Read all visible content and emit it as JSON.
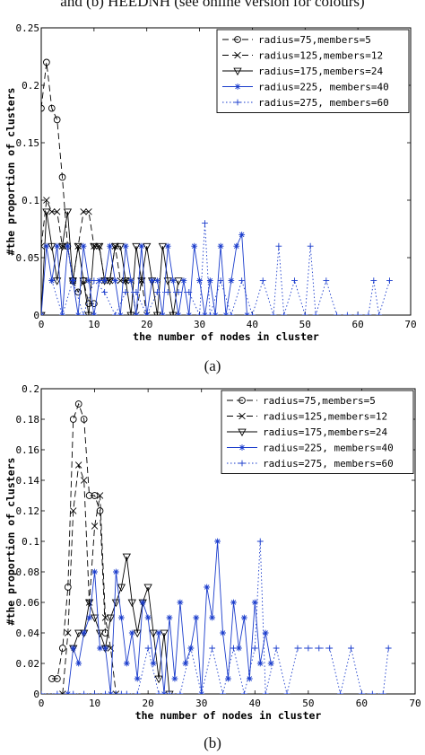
{
  "header_caption": "and (b) HEEDNH (see online version for colours)",
  "chart_data": [
    {
      "panel": "a",
      "caption": "(a)",
      "type": "line",
      "xlabel": "the number of nodes in cluster",
      "ylabel": "#the proportion of clusters",
      "xlim": [
        0,
        70
      ],
      "ylim": [
        0,
        0.25
      ],
      "xticks": [
        0,
        10,
        20,
        30,
        40,
        50,
        60,
        70
      ],
      "yticks": [
        0,
        0.05,
        0.1,
        0.15,
        0.2,
        0.25
      ],
      "ytick_labels": [
        "0",
        "0.05",
        "0.1",
        "0.15",
        "0.2",
        "0.25"
      ],
      "legend_position": "top-right",
      "grid": false,
      "series": [
        {
          "name": "radius=75,members=5",
          "color": "#000000",
          "dash": "7,4",
          "marker": "circle",
          "x": [
            0,
            1,
            2,
            3,
            4,
            5,
            6,
            7,
            8,
            9,
            10
          ],
          "y": [
            0.18,
            0.22,
            0.18,
            0.17,
            0.12,
            0.06,
            0.03,
            0.02,
            0.03,
            0.01,
            0.01
          ]
        },
        {
          "name": "radius=125,members=12",
          "color": "#000000",
          "dash": "7,4",
          "marker": "x",
          "x": [
            0,
            1,
            2,
            3,
            4,
            5,
            6,
            7,
            8,
            9,
            10,
            11,
            12,
            13,
            14,
            15,
            16,
            17,
            18,
            19,
            20
          ],
          "y": [
            0.06,
            0.1,
            0.09,
            0.09,
            0.06,
            0.06,
            0.03,
            0.06,
            0.09,
            0.09,
            0.06,
            0.06,
            0.03,
            0.03,
            0.06,
            0.03,
            0.03,
            0.03,
            0.0,
            0.03,
            0.0
          ]
        },
        {
          "name": "radius=175,members=24",
          "color": "#000000",
          "dash": "",
          "marker": "triangle",
          "x": [
            0,
            1,
            2,
            3,
            4,
            5,
            6,
            7,
            8,
            9,
            10,
            11,
            12,
            13,
            14,
            15,
            16,
            17,
            18,
            19,
            20,
            21,
            22,
            23,
            24,
            25,
            26
          ],
          "y": [
            0.0,
            0.09,
            0.06,
            0.03,
            0.06,
            0.09,
            0.03,
            0.06,
            0.03,
            0.0,
            0.06,
            0.06,
            0.03,
            0.03,
            0.06,
            0.06,
            0.03,
            0.0,
            0.06,
            0.03,
            0.06,
            0.03,
            0.0,
            0.06,
            0.03,
            0.0,
            0.03
          ]
        },
        {
          "name": "radius=225, members=40",
          "color": "#1a3ccc",
          "dash": "",
          "marker": "asterisk",
          "x": [
            0,
            1,
            2,
            3,
            4,
            5,
            6,
            7,
            8,
            9,
            10,
            11,
            12,
            13,
            14,
            15,
            16,
            17,
            18,
            19,
            20,
            21,
            22,
            23,
            24,
            25,
            26,
            27,
            28,
            29,
            30,
            31,
            32,
            33,
            34,
            35,
            36,
            37,
            38,
            39
          ],
          "y": [
            0.0,
            0.06,
            0.03,
            0.06,
            0.0,
            0.06,
            0.03,
            0.0,
            0.06,
            0.03,
            0.0,
            0.03,
            0.03,
            0.06,
            0.03,
            0.0,
            0.06,
            0.03,
            0.0,
            0.06,
            0.0,
            0.03,
            0.03,
            0.0,
            0.06,
            0.03,
            0.0,
            0.03,
            0.0,
            0.06,
            0.03,
            0.0,
            0.03,
            0.0,
            0.06,
            0.0,
            0.03,
            0.06,
            0.07,
            0.0
          ]
        },
        {
          "name": "radius=275, members=60",
          "color": "#1a3ccc",
          "dash": "1.5,2.5",
          "marker": "plus",
          "x": [
            2,
            4,
            6,
            8,
            10,
            12,
            14,
            16,
            18,
            20,
            22,
            24,
            26,
            28,
            30,
            31,
            32,
            34,
            36,
            38,
            40,
            42,
            44,
            45,
            46,
            48,
            50,
            51,
            52,
            54,
            56,
            58,
            60,
            62,
            63,
            64,
            66
          ],
          "y": [
            0.03,
            0.0,
            0.03,
            0.0,
            0.03,
            0.02,
            0.0,
            0.02,
            0.02,
            0.0,
            0.02,
            0.02,
            0.02,
            0.02,
            0.0,
            0.08,
            0.0,
            0.03,
            0.0,
            0.03,
            0.0,
            0.03,
            0.0,
            0.06,
            0.0,
            0.03,
            0.0,
            0.06,
            0.0,
            0.03,
            0.0,
            0.0,
            0.0,
            0.0,
            0.03,
            0.0,
            0.03
          ]
        }
      ]
    },
    {
      "panel": "b",
      "caption": "(b)",
      "type": "line",
      "xlabel": "the number of nodes in cluster",
      "ylabel": "#the proportion of clusters",
      "xlim": [
        0,
        70
      ],
      "ylim": [
        0,
        0.2
      ],
      "xticks": [
        0,
        10,
        20,
        30,
        40,
        50,
        60,
        70
      ],
      "yticks": [
        0,
        0.02,
        0.04,
        0.06,
        0.08,
        0.1,
        0.12,
        0.14,
        0.16,
        0.18,
        0.2
      ],
      "ytick_labels": [
        "0",
        "0.02",
        "0.04",
        "0.06",
        "0.08",
        "0.1",
        "0.12",
        "0.14",
        "0.16",
        "0.18",
        "0.2"
      ],
      "legend_position": "top-right",
      "grid": false,
      "series": [
        {
          "name": "radius=75,members=5",
          "color": "#000000",
          "dash": "7,4",
          "marker": "circle",
          "x": [
            2,
            3,
            4,
            5,
            6,
            7,
            8,
            9,
            10,
            11,
            12
          ],
          "y": [
            0.01,
            0.01,
            0.03,
            0.07,
            0.18,
            0.19,
            0.18,
            0.13,
            0.13,
            0.12,
            0.04
          ]
        },
        {
          "name": "radius=125,members=12",
          "color": "#000000",
          "dash": "7,4",
          "marker": "x",
          "x": [
            4,
            5,
            6,
            7,
            8,
            9,
            10,
            11,
            12,
            13,
            14
          ],
          "y": [
            0.0,
            0.04,
            0.12,
            0.15,
            0.14,
            0.06,
            0.11,
            0.13,
            0.05,
            0.03,
            0.0
          ]
        },
        {
          "name": "radius=175,members=24",
          "color": "#000000",
          "dash": "",
          "marker": "triangle",
          "x": [
            6,
            7,
            8,
            9,
            10,
            11,
            12,
            13,
            14,
            15,
            16,
            17,
            18,
            19,
            20,
            21,
            22,
            23,
            24
          ],
          "y": [
            0.03,
            0.04,
            0.04,
            0.06,
            0.05,
            0.04,
            0.03,
            0.05,
            0.06,
            0.07,
            0.09,
            0.06,
            0.04,
            0.06,
            0.07,
            0.04,
            0.01,
            0.04,
            0.0
          ]
        },
        {
          "name": "radius=225, members=40",
          "color": "#1a3ccc",
          "dash": "",
          "marker": "asterisk",
          "x": [
            5,
            6,
            7,
            8,
            9,
            10,
            11,
            12,
            13,
            14,
            15,
            16,
            17,
            18,
            19,
            20,
            21,
            22,
            23,
            24,
            25,
            26,
            27,
            28,
            29,
            30,
            31,
            32,
            33,
            34,
            35,
            36,
            37,
            38,
            39,
            40,
            41,
            42,
            43
          ],
          "y": [
            0.0,
            0.03,
            0.02,
            0.04,
            0.05,
            0.08,
            0.03,
            0.03,
            0.0,
            0.08,
            0.05,
            0.02,
            0.04,
            0.01,
            0.06,
            0.05,
            0.02,
            0.04,
            0.0,
            0.05,
            0.01,
            0.06,
            0.02,
            0.03,
            0.05,
            0.0,
            0.07,
            0.05,
            0.1,
            0.04,
            0.01,
            0.06,
            0.03,
            0.05,
            0.01,
            0.06,
            0.02,
            0.04,
            0.02
          ]
        },
        {
          "name": "radius=275, members=60",
          "color": "#1a3ccc",
          "dash": "1.5,2.5",
          "marker": "plus",
          "x": [
            0,
            3,
            6,
            8,
            10,
            12,
            14,
            15,
            16,
            18,
            20,
            22,
            24,
            26,
            28,
            30,
            32,
            34,
            36,
            38,
            40,
            41,
            42,
            44,
            46,
            48,
            50,
            52,
            54,
            56,
            58,
            60,
            62,
            64,
            65
          ],
          "y": [
            0.0,
            0.0,
            0.0,
            0.0,
            0.0,
            0.0,
            0.0,
            0.0,
            0.0,
            0.0,
            0.03,
            0.0,
            0.0,
            0.0,
            0.03,
            0.0,
            0.03,
            0.0,
            0.03,
            0.0,
            0.03,
            0.1,
            0.0,
            0.03,
            0.0,
            0.03,
            0.03,
            0.03,
            0.03,
            0.0,
            0.03,
            0.0,
            0.0,
            0.0,
            0.03
          ]
        }
      ]
    }
  ]
}
